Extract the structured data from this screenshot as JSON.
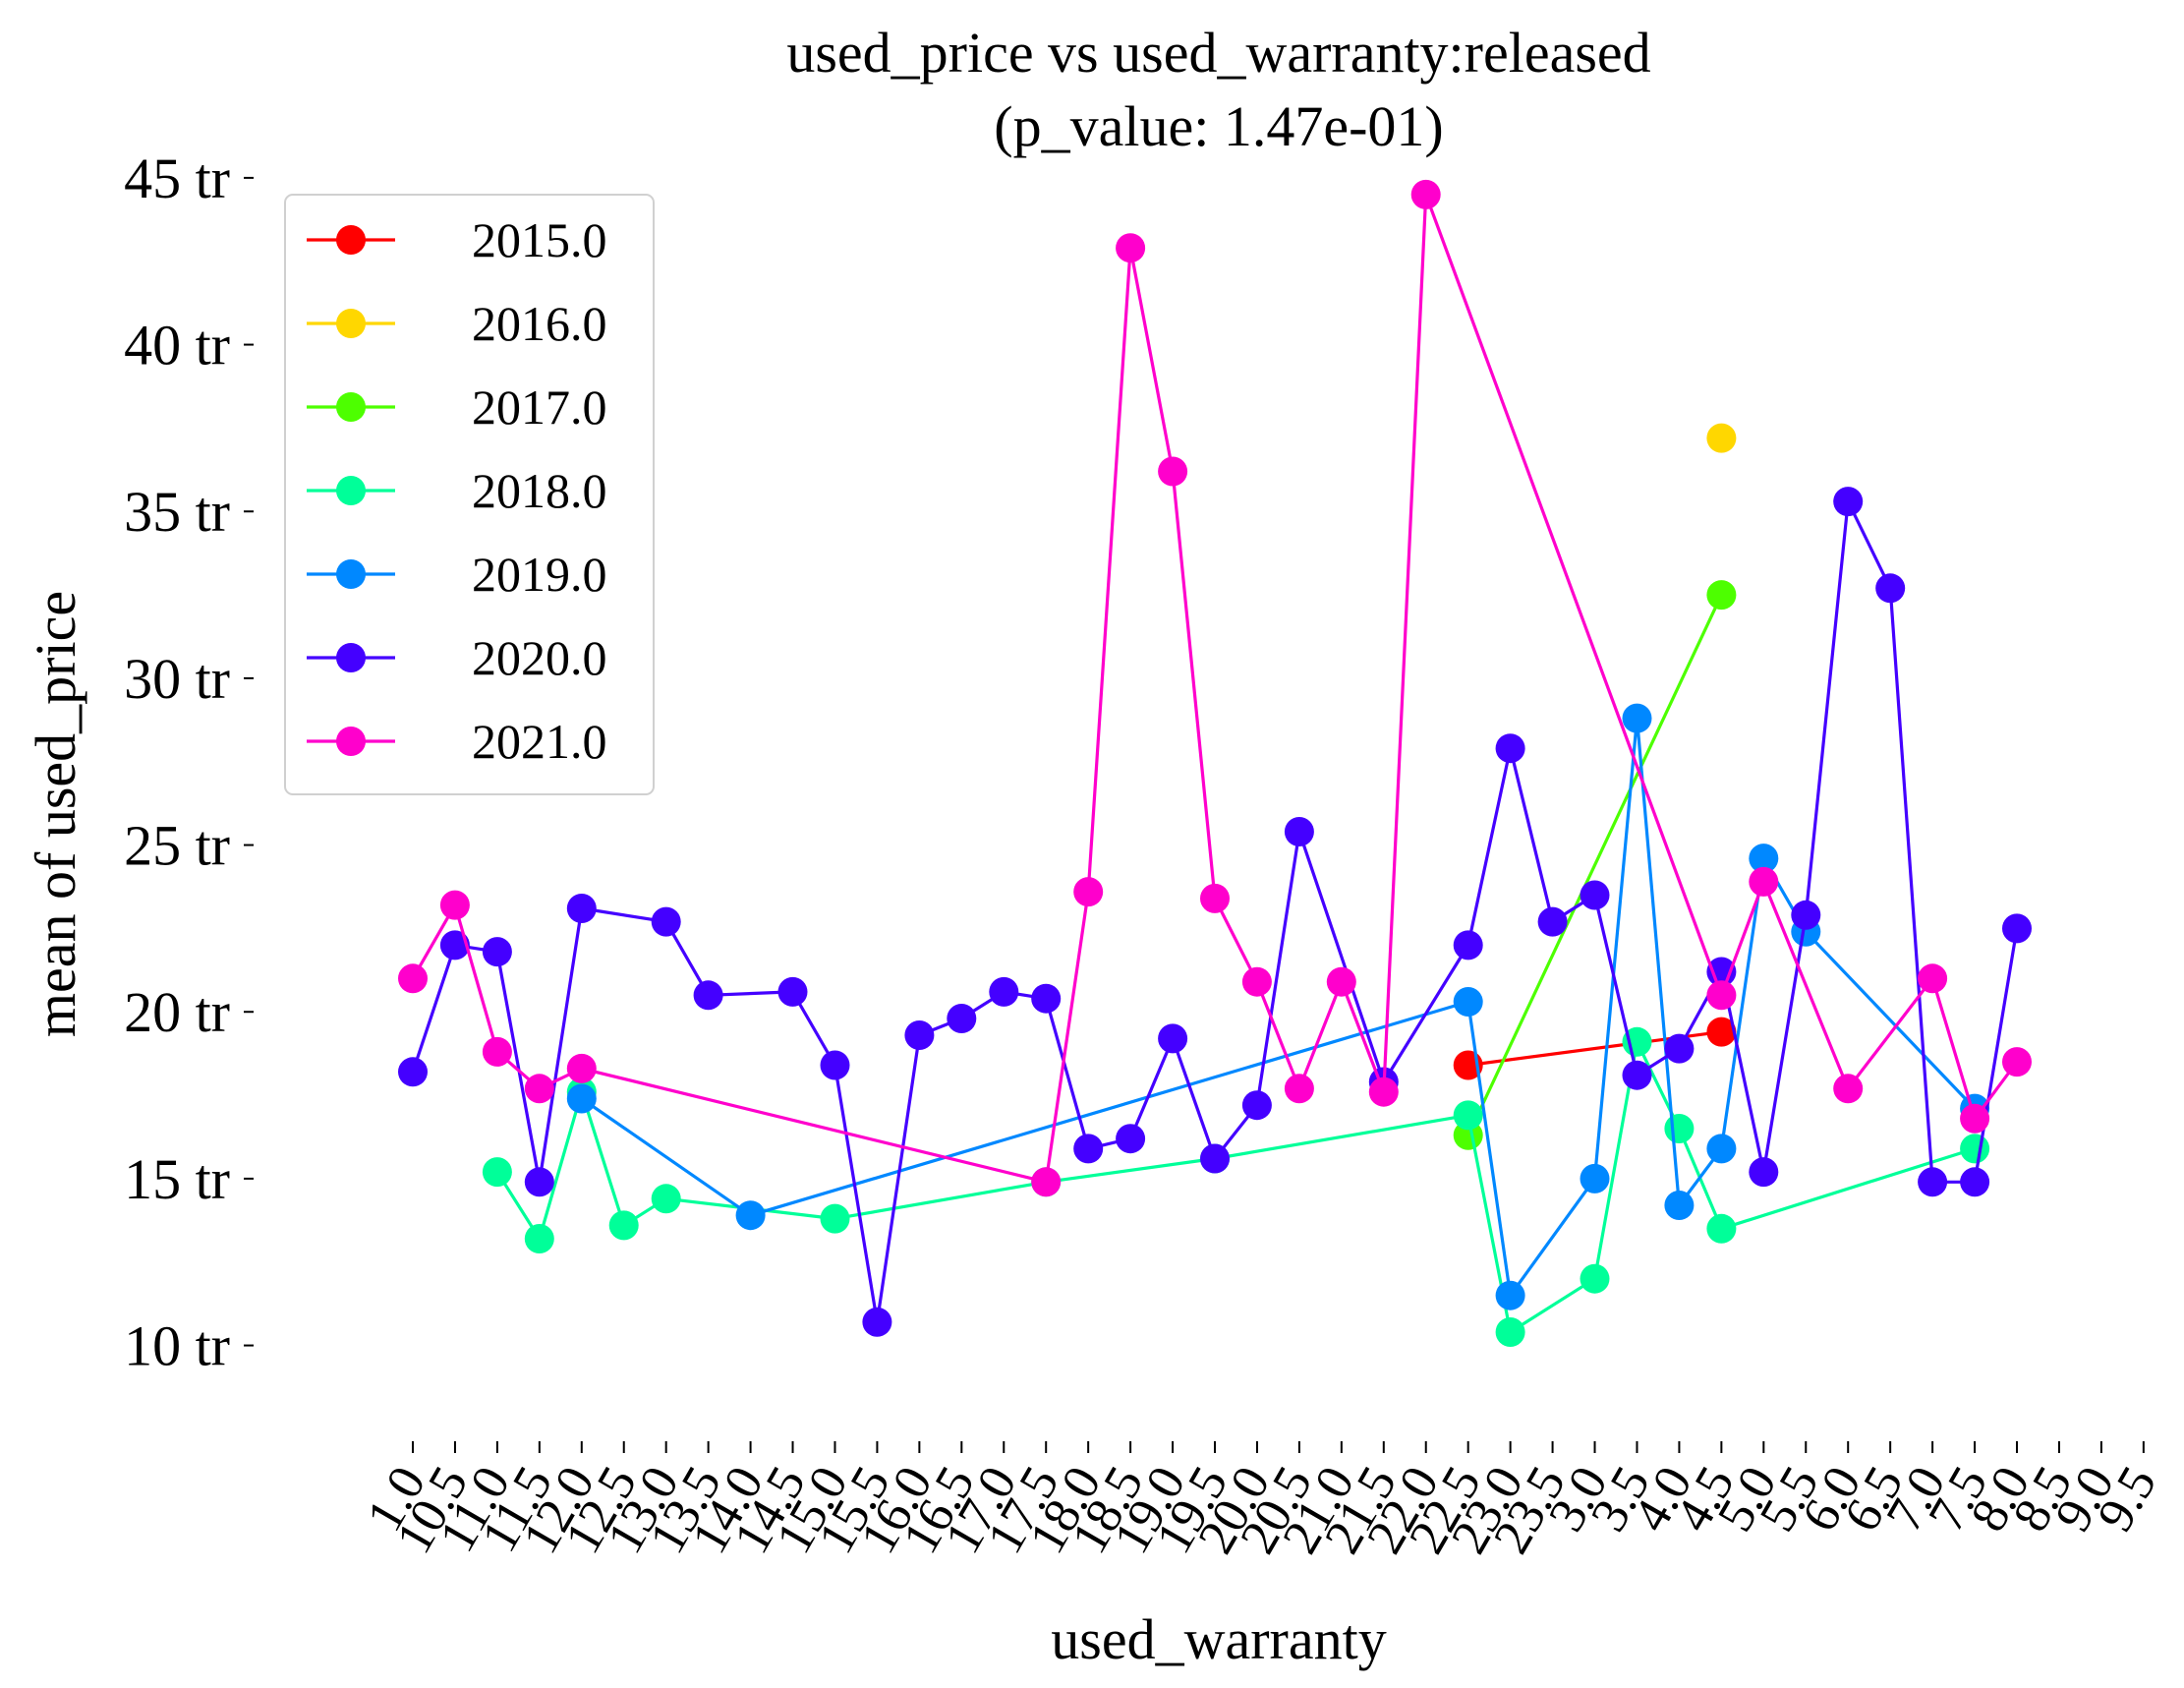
{
  "chart_data": {
    "type": "line",
    "title": "used_price vs used_warranty:released",
    "subtitle": "(p_value: 1.47e-01)",
    "xlabel": "used_warranty",
    "ylabel": "mean of used_price",
    "y_tick_values": [
      10,
      15,
      20,
      25,
      30,
      35,
      40,
      45
    ],
    "y_tick_labels": [
      "10 tr",
      "15 tr",
      "20 tr",
      "25 tr",
      "30 tr",
      "35 tr",
      "40 tr",
      "45 tr"
    ],
    "ylim": [
      7.6,
      46.5
    ],
    "x_tick_labels": [
      "1.0",
      "10.5",
      "11.0",
      "11.5",
      "12.0",
      "12.5",
      "13.0",
      "13.5",
      "14.0",
      "14.5",
      "15.0",
      "15.5",
      "16.0",
      "16.5",
      "17.0",
      "17.5",
      "18.0",
      "18.5",
      "19.0",
      "19.5",
      "20.0",
      "20.5",
      "21.0",
      "21.5",
      "22.0",
      "22.5",
      "23.0",
      "23.5",
      "3.0",
      "3.5",
      "4.0",
      "4.5",
      "5.0",
      "5.5",
      "6.0",
      "6.5",
      "7.0",
      "7.5",
      "8.0",
      "8.5",
      "9.0",
      "9.5"
    ],
    "x_tick_display": [
      "1.0",
      "10.5",
      "11.0",
      "11.5",
      "12.0",
      "12.5",
      "13.0",
      "13.5",
      "14.0",
      "14.5",
      "15.0",
      "15.5",
      "16.0",
      "16.5",
      "17.0",
      "17.5",
      "18.0",
      "18.5",
      "19.0",
      "19.5",
      "20.0",
      "20.5",
      "21.0",
      "21.5",
      "22.0",
      "22.5",
      "23.0",
      "23.5",
      "3.0",
      "3.5",
      "4.0",
      "4.5",
      "5.0",
      "5.5",
      "6.0",
      "6.5",
      "7.0",
      "7.5",
      "8.0",
      "8.5",
      "9.0",
      "9.5"
    ],
    "x_range": [
      0,
      38
    ],
    "grid": false,
    "legend_position": "top-left",
    "series": [
      {
        "name": "2015.0",
        "color": "#ff0000",
        "points": [
          [
            25,
            18.4
          ],
          [
            31,
            19.4
          ]
        ]
      },
      {
        "name": "2016.0",
        "color": "#ffd700",
        "points": [
          [
            31,
            37.2
          ]
        ]
      },
      {
        "name": "2017.0",
        "color": "#4dff00",
        "points": [
          [
            25,
            16.3
          ],
          [
            31,
            32.5
          ]
        ]
      },
      {
        "name": "2018.0",
        "color": "#00ff99",
        "points": [
          [
            2,
            15.2
          ],
          [
            3,
            13.2
          ],
          [
            4,
            17.6
          ],
          [
            5,
            13.6
          ],
          [
            6,
            14.4
          ],
          [
            10,
            13.8
          ],
          [
            15,
            14.9
          ],
          [
            19,
            15.6
          ],
          [
            25,
            16.9
          ],
          [
            26,
            10.4
          ],
          [
            28,
            12.0
          ],
          [
            29,
            19.1
          ],
          [
            30,
            16.5
          ],
          [
            31,
            13.5
          ],
          [
            37,
            15.9
          ]
        ]
      },
      {
        "name": "2019.0",
        "color": "#0088ff",
        "points": [
          [
            4,
            17.4
          ],
          [
            8,
            13.9
          ],
          [
            25,
            20.3
          ],
          [
            26,
            11.5
          ],
          [
            28,
            15.0
          ],
          [
            29,
            28.8
          ],
          [
            30,
            14.2
          ],
          [
            31,
            15.9
          ],
          [
            32,
            24.6
          ],
          [
            33,
            22.4
          ],
          [
            37,
            17.1
          ]
        ]
      },
      {
        "name": "2020.0",
        "color": "#4400ff",
        "points": [
          [
            0,
            18.2
          ],
          [
            1,
            22.0
          ],
          [
            2,
            21.8
          ],
          [
            3,
            14.9
          ],
          [
            4,
            23.1
          ],
          [
            6,
            22.7
          ],
          [
            7,
            20.5
          ],
          [
            9,
            20.6
          ],
          [
            10,
            18.4
          ],
          [
            11,
            10.7
          ],
          [
            12,
            19.3
          ],
          [
            13,
            19.8
          ],
          [
            14,
            20.6
          ],
          [
            15,
            20.4
          ],
          [
            16,
            15.9
          ],
          [
            17,
            16.2
          ],
          [
            18,
            19.2
          ],
          [
            19,
            15.6
          ],
          [
            20,
            17.2
          ],
          [
            21,
            25.4
          ],
          [
            23,
            17.9
          ],
          [
            25,
            22.0
          ],
          [
            26,
            27.9
          ],
          [
            27,
            22.7
          ],
          [
            28,
            23.5
          ],
          [
            29,
            18.1
          ],
          [
            30,
            18.9
          ],
          [
            31,
            21.2
          ],
          [
            32,
            15.2
          ],
          [
            33,
            22.9
          ],
          [
            34,
            35.3
          ],
          [
            35,
            32.7
          ],
          [
            36,
            14.9
          ],
          [
            37,
            14.9
          ],
          [
            38,
            22.5
          ]
        ]
      },
      {
        "name": "2021.0",
        "color": "#ff00cc",
        "points": [
          [
            0,
            21.0
          ],
          [
            1,
            23.2
          ],
          [
            2,
            18.8
          ],
          [
            3,
            17.7
          ],
          [
            4,
            18.3
          ],
          [
            15,
            14.9
          ],
          [
            16,
            23.6
          ],
          [
            17,
            42.9
          ],
          [
            18,
            36.2
          ],
          [
            19,
            23.4
          ],
          [
            20,
            20.9
          ],
          [
            21,
            17.7
          ],
          [
            22,
            20.9
          ],
          [
            23,
            17.6
          ],
          [
            24,
            44.5
          ],
          [
            31,
            20.5
          ],
          [
            32,
            23.9
          ],
          [
            34,
            17.7
          ],
          [
            36,
            21.0
          ],
          [
            37,
            16.8
          ],
          [
            38,
            18.5
          ]
        ]
      }
    ]
  }
}
